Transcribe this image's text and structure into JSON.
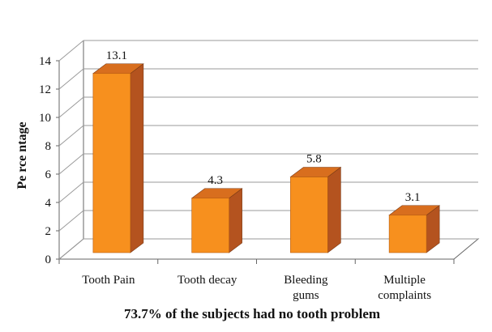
{
  "chart_data": {
    "type": "bar",
    "categories": [
      [
        "Tooth Pain"
      ],
      [
        "Tooth decay"
      ],
      [
        "Bleeding",
        "gums"
      ],
      [
        "Multiple",
        "complaints"
      ]
    ],
    "values": [
      13.1,
      4.3,
      5.8,
      3.1
    ],
    "data_labels": [
      "13.1",
      "4.3",
      "5.8",
      "3.1"
    ],
    "yticks": [
      "0",
      "2",
      "4",
      "6",
      "8",
      "10",
      "12",
      "14"
    ],
    "ylim": [
      0,
      14
    ],
    "ylabel": "Pe rce ntage",
    "xlabel": "73.7% of the subjects had no tooth problem",
    "grid": true,
    "style_3d": true,
    "colors": {
      "bar_front": "#F7901E",
      "bar_side": "#B4531F",
      "bar_top": "#D86E1E",
      "grid": "#9a9a9a",
      "axis": "#666666"
    }
  }
}
